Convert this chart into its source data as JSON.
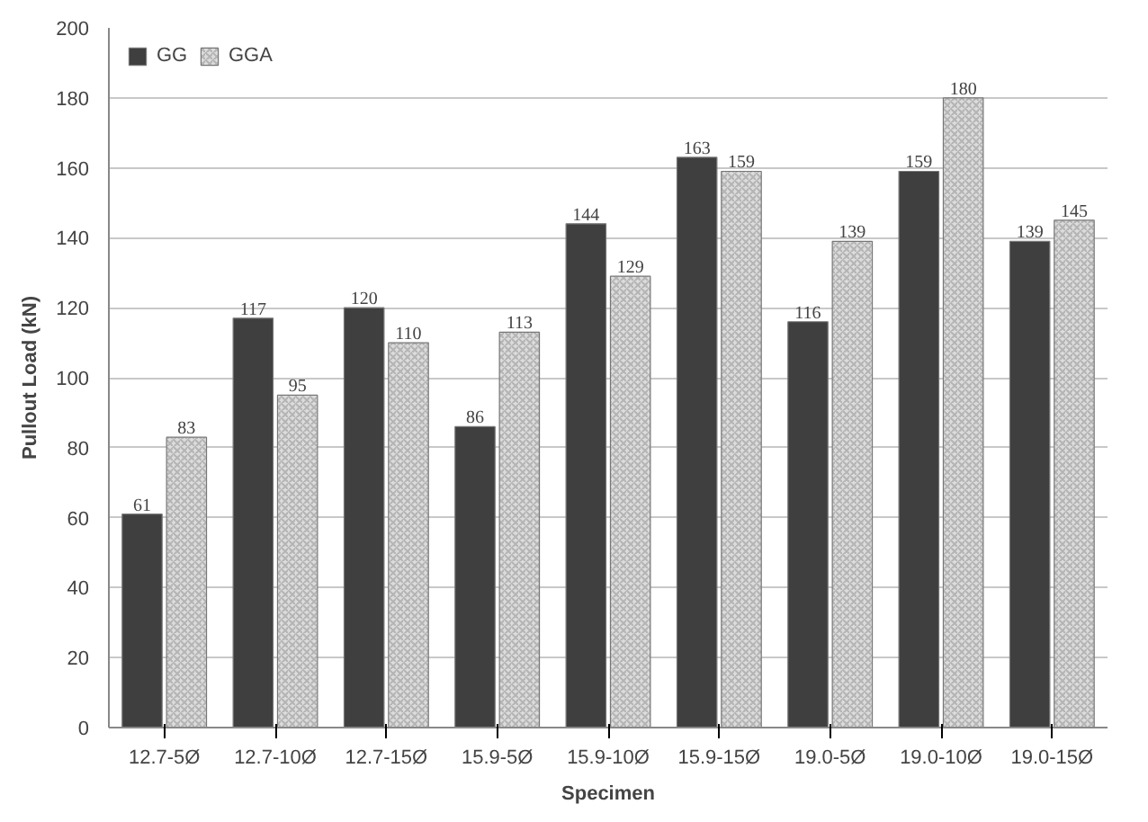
{
  "chart_data": {
    "type": "bar",
    "xlabel": "Specimen",
    "ylabel": "Pullout Load (kN)",
    "categories": [
      "12.7-5Ø",
      "12.7-10Ø",
      "12.7-15Ø",
      "15.9-5Ø",
      "15.9-10Ø",
      "15.9-15Ø",
      "19.0-5Ø",
      "19.0-10Ø",
      "19.0-15Ø"
    ],
    "series": [
      {
        "name": "GG",
        "color": "#3f3f3f",
        "values": [
          61,
          117,
          120,
          86,
          144,
          163,
          116,
          159,
          139
        ]
      },
      {
        "name": "GGA",
        "color": "#dcdcdc",
        "values": [
          83,
          95,
          110,
          113,
          129,
          159,
          139,
          180,
          145
        ]
      }
    ],
    "ylim": [
      0,
      200
    ],
    "yticks": [
      0,
      20,
      40,
      60,
      80,
      100,
      120,
      140,
      160,
      180,
      200
    ],
    "grid": "y",
    "legend": "top left",
    "data_labels": true
  }
}
